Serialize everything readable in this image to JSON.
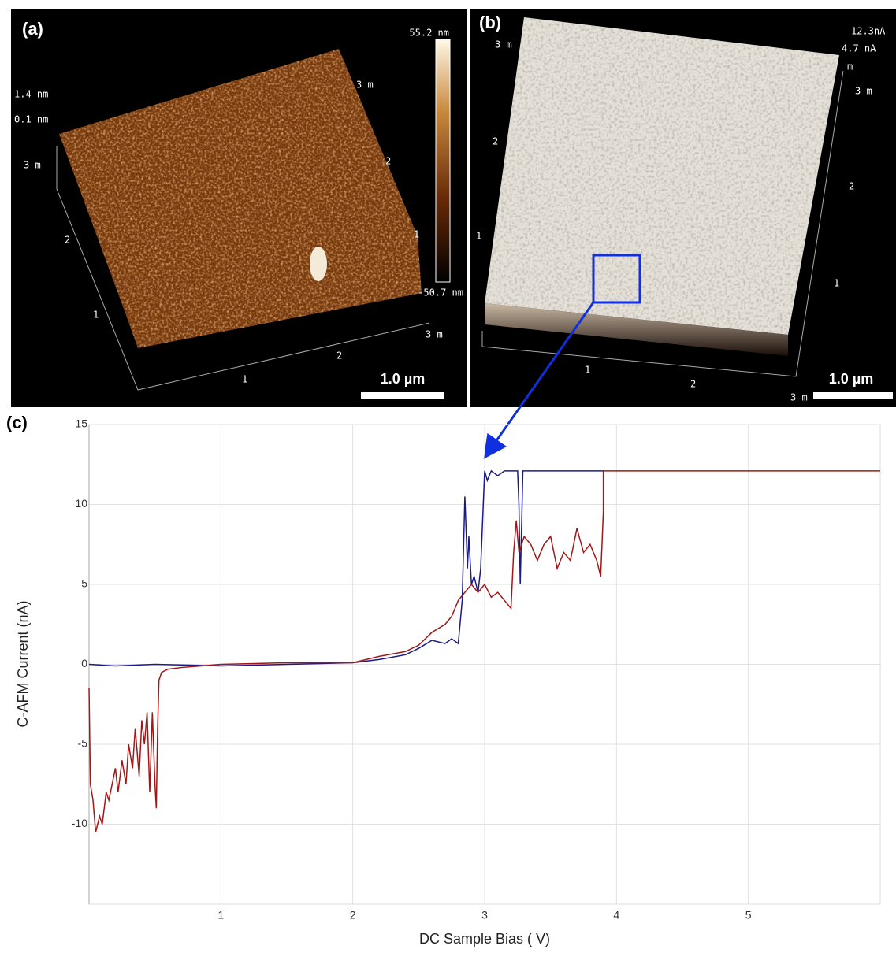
{
  "panels": [
    {
      "label": "(a)",
      "scale_bar": "1.0 µm",
      "colorbar_labels": [
        "55.2 nm",
        "-50.7 nm"
      ],
      "z_labels": [
        "1.4 nm",
        "0.1 nm"
      ],
      "axis_labels": [
        "3 m",
        "2",
        "1",
        "1",
        "2",
        "3 m",
        "1",
        "2",
        "3 m"
      ]
    },
    {
      "label": "(b)",
      "scale_bar": "1.0 µm",
      "z_labels": [
        "12.3nA",
        "4.7 nA"
      ],
      "axis_labels": [
        "3 m",
        "2",
        "1",
        "1",
        "2",
        "3 m",
        "m",
        "3 m",
        "2",
        "1"
      ]
    }
  ],
  "chart_data": {
    "type": "line",
    "label": "(c)",
    "x_label": "DC Sample Bias ( V)",
    "y_label": "C-AFM Current (nA)",
    "xlim": [
      0,
      6
    ],
    "ylim": [
      -15,
      15
    ],
    "xticks": [
      1,
      2,
      3,
      4,
      5
    ],
    "yticks": [
      -10,
      -5,
      0,
      5,
      10,
      15
    ],
    "grid": true,
    "series": [
      {
        "color": "#1a1a8c",
        "x": [
          0,
          0.2,
          0.5,
          1.0,
          1.5,
          2.0,
          2.2,
          2.4,
          2.5,
          2.6,
          2.7,
          2.75,
          2.8,
          2.83,
          2.85,
          2.87,
          2.88,
          2.9,
          2.92,
          2.95,
          2.97,
          3.0,
          3.02,
          3.05,
          3.1,
          3.15,
          3.2,
          3.25,
          3.26,
          3.27,
          3.29,
          3.3,
          3.35,
          3.5,
          3.7,
          3.9
        ],
        "values": [
          0,
          -0.1,
          0,
          -0.1,
          0,
          0.1,
          0.3,
          0.6,
          1.0,
          1.5,
          1.3,
          1.6,
          1.3,
          4,
          10.5,
          6,
          8,
          5,
          5.5,
          4.5,
          6,
          12.1,
          11.5,
          12.1,
          11.8,
          12.1,
          12.1,
          12.1,
          10,
          5,
          12.1,
          12.1,
          12.1,
          12.1,
          12.1,
          12.1
        ]
      },
      {
        "color": "#a01818",
        "x": [
          0,
          0.01,
          0.03,
          0.05,
          0.08,
          0.1,
          0.13,
          0.15,
          0.2,
          0.22,
          0.25,
          0.28,
          0.3,
          0.33,
          0.35,
          0.38,
          0.4,
          0.42,
          0.44,
          0.46,
          0.48,
          0.5,
          0.51,
          0.52,
          0.53,
          0.55,
          0.6,
          0.7,
          1.0,
          1.5,
          2.0,
          2.2,
          2.4,
          2.5,
          2.6,
          2.7,
          2.75,
          2.8,
          2.85,
          2.9,
          2.95,
          3.0,
          3.05,
          3.1,
          3.15,
          3.2,
          3.22,
          3.24,
          3.26,
          3.3,
          3.35,
          3.4,
          3.45,
          3.5,
          3.55,
          3.6,
          3.65,
          3.7,
          3.75,
          3.8,
          3.85,
          3.88,
          3.9,
          3.9,
          3.91,
          4.5,
          5,
          6
        ],
        "values": [
          -1.5,
          -7.5,
          -8.5,
          -10.5,
          -9.5,
          -10,
          -8,
          -8.5,
          -6.5,
          -8,
          -6,
          -7.5,
          -5,
          -6.5,
          -4,
          -7,
          -3.5,
          -5,
          -3,
          -8,
          -3,
          -7.5,
          -9,
          -4,
          -1,
          -0.5,
          -0.3,
          -0.2,
          0,
          0.1,
          0.1,
          0.5,
          0.8,
          1.2,
          2,
          2.5,
          3,
          4,
          4.5,
          5,
          4.5,
          5,
          4.2,
          4.5,
          4,
          3.5,
          7,
          9,
          7,
          8,
          7.5,
          6.5,
          7.5,
          8,
          6,
          7,
          6.5,
          8.5,
          7,
          7.5,
          6.5,
          5.5,
          9.5,
          12.1,
          12.1,
          12.1,
          12.1,
          12.1
        ]
      }
    ]
  }
}
